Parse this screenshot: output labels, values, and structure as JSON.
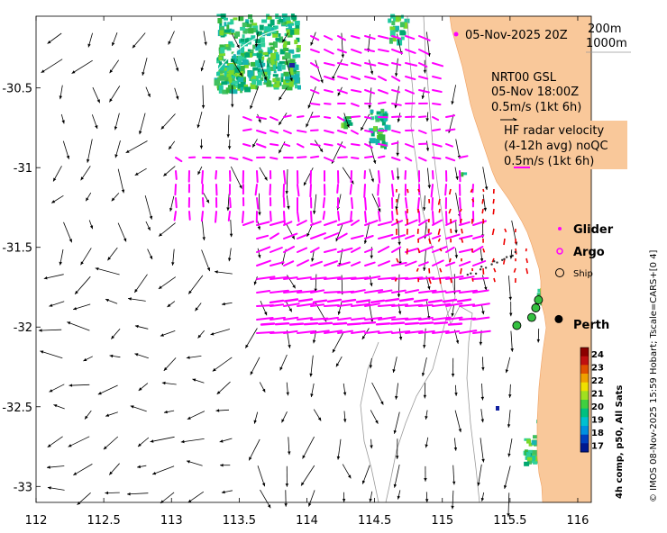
{
  "chart_data": {
    "type": "map",
    "x_ticks": [
      "112",
      "112.5",
      "113",
      "113.5",
      "114",
      "114.5",
      "115",
      "115.5",
      "116"
    ],
    "y_ticks": [
      "-30.5",
      "-31",
      "-31.5",
      "-32",
      "-32.5",
      "-33"
    ],
    "xlim": [
      112,
      116.1
    ],
    "ylim": [
      -33.1,
      -30.05
    ],
    "header_text": "05-Nov-2025 20Z",
    "depth_legend": [
      "200m",
      "1000m"
    ],
    "nrt_block": [
      "NRT00 GSL",
      "05-Nov 18:00Z",
      "0.5m/s (1kt 6h)"
    ],
    "hf_block": [
      "HF radar velocity",
      "(4-12h avg) noQC",
      "0.5m/s (1kt 6h)"
    ],
    "legend": {
      "glider": "Glider",
      "argo": "Argo",
      "ship": "Ship",
      "perth": "Perth"
    },
    "colorbar": {
      "title": "4h comp, p50, All Sats",
      "ticks": [
        "24",
        "23",
        "22",
        "21",
        "20",
        "19",
        "18",
        "17"
      ],
      "range": [
        16.5,
        24.5
      ]
    },
    "credit": "© IMOS 08-Nov-2025 15:59 Hobart; Tscale=CARS+[0 4]",
    "perth_location": {
      "lon": 115.86,
      "lat": -31.95
    },
    "ship_locations": [
      {
        "lon": 115.55,
        "lat": -31.99
      },
      {
        "lon": 115.66,
        "lat": -31.94
      },
      {
        "lon": 115.69,
        "lat": -31.88
      },
      {
        "lon": 115.71,
        "lat": -31.83
      }
    ],
    "land_color": "#f9c89a",
    "ocean_color": "#ffffff",
    "hf_vector_color": "#ff00ff",
    "gsl_vector_color": "#000000"
  }
}
